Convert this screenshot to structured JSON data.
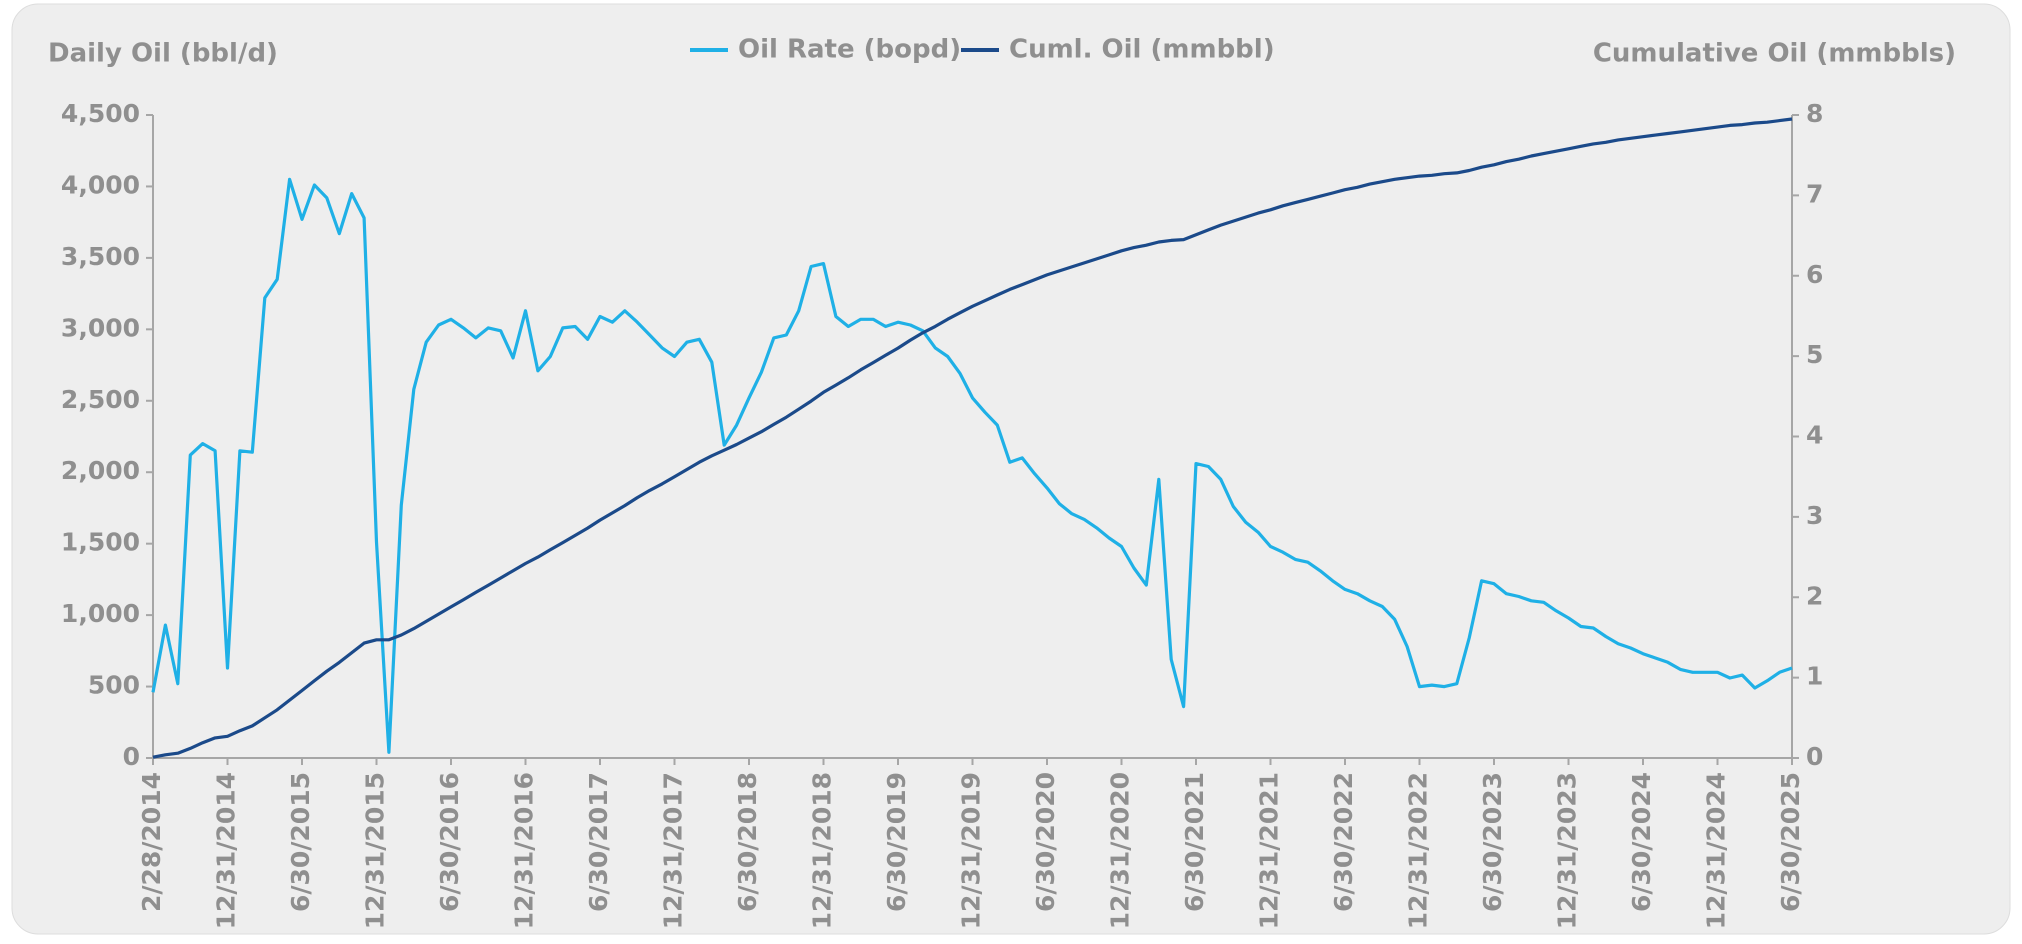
{
  "chart_data": {
    "type": "line",
    "y_label": "Daily Oil (bbl/d)",
    "y2_label": "Cumulative Oil (mmbbls)",
    "categories": [
      "2/28/2014",
      null,
      null,
      null,
      null,
      null,
      "12/31/2014",
      null,
      null,
      null,
      null,
      null,
      "6/30/2015",
      null,
      null,
      null,
      null,
      null,
      "12/31/2015",
      null,
      null,
      null,
      null,
      null,
      "6/30/2016",
      null,
      null,
      null,
      null,
      null,
      "12/31/2016",
      null,
      null,
      null,
      null,
      null,
      "6/30/2017",
      null,
      null,
      null,
      null,
      null,
      "12/31/2017",
      null,
      null,
      null,
      null,
      null,
      "6/30/2018",
      null,
      null,
      null,
      null,
      null,
      "12/31/2018",
      null,
      null,
      null,
      null,
      null,
      "6/30/2019",
      null,
      null,
      null,
      null,
      null,
      "12/31/2019",
      null,
      null,
      null,
      null,
      null,
      "6/30/2020",
      null,
      null,
      null,
      null,
      null,
      "12/31/2020",
      null,
      null,
      null,
      null,
      null,
      "6/30/2021",
      null,
      null,
      null,
      null,
      null,
      "12/31/2021",
      null,
      null,
      null,
      null,
      null,
      "6/30/2022",
      null,
      null,
      null,
      null,
      null,
      "12/31/2022",
      null,
      null,
      null,
      null,
      null,
      "6/30/2023",
      null,
      null,
      null,
      null,
      null,
      "12/31/2023",
      null,
      null,
      null,
      null,
      null,
      "6/30/2024",
      null,
      null,
      null,
      null,
      null,
      "12/31/2024",
      null,
      null,
      null,
      null,
      null,
      "6/30/2025"
    ],
    "series": [
      {
        "name": "Oil Rate (bopd)",
        "color": "#1fb0e6",
        "axis": "y",
        "values": [
          460,
          930,
          520,
          2120,
          2200,
          2150,
          630,
          2150,
          2140,
          3220,
          3350,
          4050,
          3770,
          4010,
          3920,
          3670,
          3950,
          3780,
          1510,
          40,
          1770,
          2580,
          2910,
          3030,
          3070,
          3010,
          2940,
          3010,
          2990,
          2800,
          3130,
          2710,
          2810,
          3010,
          3020,
          2930,
          3090,
          3050,
          3130,
          3050,
          2960,
          2870,
          2810,
          2910,
          2930,
          2770,
          2190,
          2330,
          2520,
          2700,
          2940,
          2960,
          3130,
          3440,
          3460,
          3090,
          3020,
          3070,
          3070,
          3020,
          3050,
          3030,
          2990,
          2870,
          2810,
          2690,
          2520,
          2420,
          2330,
          2070,
          2100,
          1990,
          1890,
          1780,
          1710,
          1670,
          1610,
          1540,
          1480,
          1330,
          1210,
          1950,
          690,
          360,
          2060,
          2040,
          1950,
          1760,
          1650,
          1580,
          1480,
          1440,
          1390,
          1370,
          1310,
          1240,
          1180,
          1150,
          1100,
          1060,
          970,
          780,
          500,
          510,
          500,
          520,
          840,
          1240,
          1220,
          1150,
          1130,
          1100,
          1090,
          1030,
          980,
          920,
          910,
          850,
          800,
          770,
          730,
          700,
          670,
          620,
          600,
          600,
          600,
          560,
          580,
          490,
          540,
          600,
          630
        ]
      },
      {
        "name": "Cuml. Oil (mmbbl)",
        "color": "#1b4a8a",
        "axis": "y2",
        "values": [
          0.01,
          0.04,
          0.06,
          0.12,
          0.19,
          0.25,
          0.27,
          0.34,
          0.4,
          0.5,
          0.6,
          0.72,
          0.84,
          0.96,
          1.08,
          1.19,
          1.31,
          1.43,
          1.47,
          1.47,
          1.53,
          1.61,
          1.7,
          1.79,
          1.88,
          1.97,
          2.06,
          2.15,
          2.24,
          2.33,
          2.42,
          2.5,
          2.59,
          2.68,
          2.77,
          2.86,
          2.96,
          3.05,
          3.14,
          3.24,
          3.33,
          3.41,
          3.5,
          3.59,
          3.68,
          3.76,
          3.83,
          3.9,
          3.98,
          4.06,
          4.15,
          4.24,
          4.34,
          4.44,
          4.55,
          4.64,
          4.73,
          4.83,
          4.92,
          5.01,
          5.1,
          5.2,
          5.29,
          5.37,
          5.46,
          5.54,
          5.62,
          5.69,
          5.76,
          5.83,
          5.89,
          5.95,
          6.01,
          6.06,
          6.11,
          6.16,
          6.21,
          6.26,
          6.31,
          6.35,
          6.38,
          6.42,
          6.44,
          6.45,
          6.51,
          6.57,
          6.63,
          6.68,
          6.73,
          6.78,
          6.82,
          6.87,
          6.91,
          6.95,
          6.99,
          7.03,
          7.07,
          7.1,
          7.14,
          7.17,
          7.2,
          7.22,
          7.24,
          7.25,
          7.27,
          7.28,
          7.31,
          7.35,
          7.38,
          7.42,
          7.45,
          7.49,
          7.52,
          7.55,
          7.58,
          7.61,
          7.64,
          7.66,
          7.69,
          7.71,
          7.73,
          7.75,
          7.77,
          7.79,
          7.81,
          7.83,
          7.85,
          7.87,
          7.88,
          7.9,
          7.91,
          7.93,
          7.95
        ]
      }
    ],
    "ylim": [
      0,
      4500
    ],
    "yticks": [
      0,
      500,
      {
        "value": 1000,
        "label": "1,000"
      },
      {
        "value": 1500,
        "label": "1,500"
      },
      {
        "value": 2000,
        "label": "2,000"
      },
      {
        "value": 2500,
        "label": "2,500"
      },
      {
        "value": 3000,
        "label": "3,000"
      },
      {
        "value": 3500,
        "label": "3,500"
      },
      {
        "value": 4000,
        "label": "4,000"
      },
      {
        "value": 4500,
        "label": "4,500"
      }
    ],
    "y2lim": [
      0,
      8
    ],
    "y2ticks": [
      0,
      1,
      2,
      3,
      4,
      5,
      6,
      7,
      8
    ],
    "legend": "top",
    "grid": false
  }
}
